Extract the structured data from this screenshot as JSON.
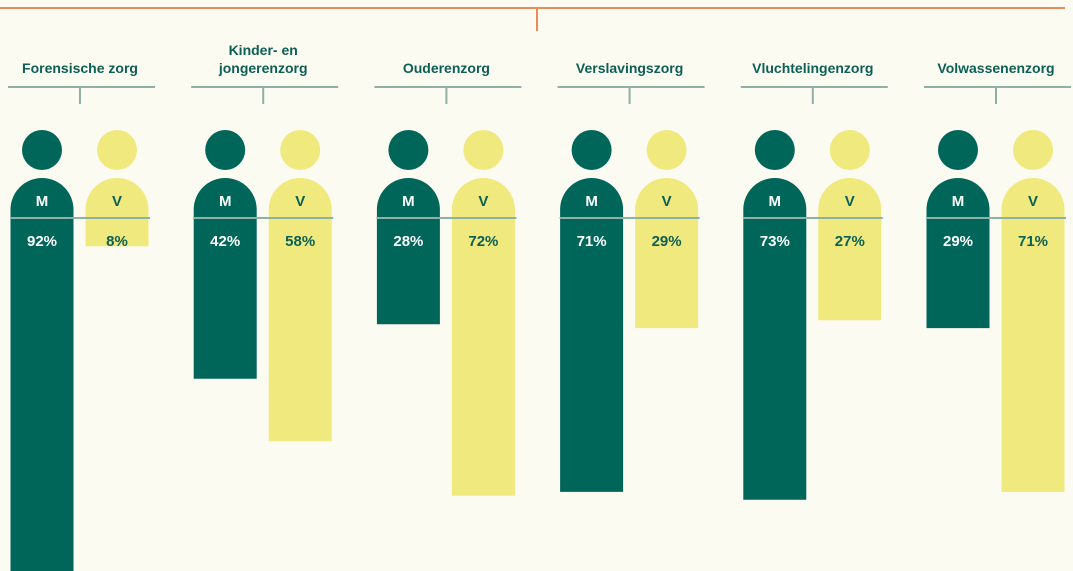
{
  "chart_data": {
    "type": "bar",
    "categories": [
      "Forensische zorg",
      "Kinder- en\njongerenzorg",
      "Ouderenzorg",
      "Verslavingszorg",
      "Vluchtelingenzorg",
      "Volwassenenzorg"
    ],
    "series": [
      {
        "name": "M",
        "color": "#00665a",
        "values": [
          92,
          42,
          28,
          71,
          73,
          29
        ],
        "value_labels": [
          "92%",
          "42%",
          "28%",
          "71%",
          "73%",
          "29%"
        ]
      },
      {
        "name": "V",
        "color": "#f0e97e",
        "values": [
          8,
          58,
          72,
          29,
          27,
          71
        ],
        "value_labels": [
          "8%",
          "58%",
          "72%",
          "29%",
          "27%",
          "71%"
        ]
      }
    ]
  }
}
